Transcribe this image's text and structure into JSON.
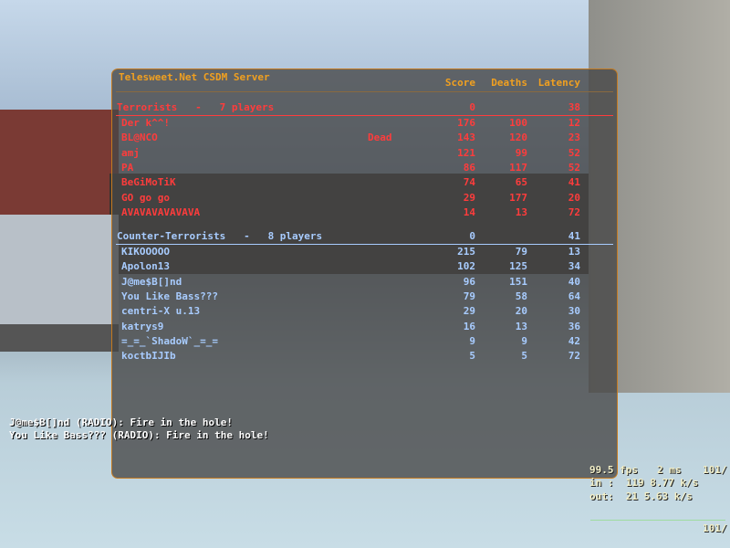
{
  "scoreboard": {
    "server_name": "Telesweet.Net CSDM Server",
    "columns": {
      "score": "Score",
      "deaths": "Deaths",
      "latency": "Latency"
    },
    "terrorists": {
      "label": "Terrorists   -   7 players",
      "score": "0",
      "latency": "38",
      "color": "#ff3c3c",
      "players": [
        {
          "name": "Der k^^!",
          "status": "",
          "score": "176",
          "deaths": "100",
          "latency": "12"
        },
        {
          "name": "BL@NCO",
          "status": "Dead",
          "score": "143",
          "deaths": "120",
          "latency": "23"
        },
        {
          "name": "amj",
          "status": "",
          "score": "121",
          "deaths": "99",
          "latency": "52"
        },
        {
          "name": "PA",
          "status": "",
          "score": "86",
          "deaths": "117",
          "latency": "52"
        },
        {
          "name": "BeGiMoTiK",
          "status": "",
          "score": "74",
          "deaths": "65",
          "latency": "41"
        },
        {
          "name": "GO go go",
          "status": "",
          "score": "29",
          "deaths": "177",
          "latency": "20"
        },
        {
          "name": "AVAVAVAVAVAVA",
          "status": "",
          "score": "14",
          "deaths": "13",
          "latency": "72"
        }
      ]
    },
    "counter_terrorists": {
      "label": "Counter-Terrorists   -   8 players",
      "score": "0",
      "latency": "41",
      "color": "#a8ccff",
      "players": [
        {
          "name": "KIKOOOOO",
          "score": "215",
          "deaths": "79",
          "latency": "13"
        },
        {
          "name": "Apolon13",
          "score": "102",
          "deaths": "125",
          "latency": "34"
        },
        {
          "name": "J@me$B[]nd",
          "score": "96",
          "deaths": "151",
          "latency": "40"
        },
        {
          "name": "You Like Bass???",
          "score": "79",
          "deaths": "58",
          "latency": "64"
        },
        {
          "name": "centri-X u.13",
          "score": "29",
          "deaths": "20",
          "latency": "30"
        },
        {
          "name": "katrys9",
          "score": "16",
          "deaths": "13",
          "latency": "36"
        },
        {
          "name": "=_=_`ShadoW`_=_=",
          "score": "9",
          "deaths": "9",
          "latency": "42"
        },
        {
          "name": "koctbIJIb",
          "score": "5",
          "deaths": "5",
          "latency": "72"
        }
      ]
    }
  },
  "chat": [
    "J@me$B[]nd (RADIO): Fire in the hole!",
    "You Like Bass??? (RADIO): Fire in the hole!"
  ],
  "netgraph": {
    "fps": "99.5 fps",
    "ping": "2 ms",
    "rate": "101/",
    "in": "in :  119 8.77 k/s",
    "out": "out:  21 5.63 k/s",
    "rate2": "101/"
  }
}
